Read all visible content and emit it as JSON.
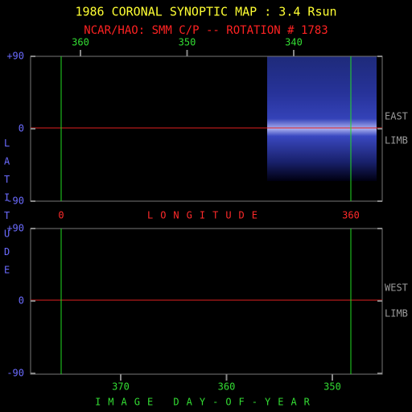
{
  "title": "1986 CORONAL SYNOPTIC MAP : 3.4 Rsun",
  "subtitle": "NCAR/HAO: SMM C/P -- ROTATION # 1783",
  "y_axis_label": "LATITUDE",
  "upper_panel": {
    "top_axis_ticks": [
      360,
      350,
      340
    ],
    "y_ticks": [
      {
        "value": 90,
        "label": "+90"
      },
      0,
      -90
    ],
    "bottom_axis": {
      "ticks": [
        0,
        360
      ],
      "label": "LONGITUDE"
    },
    "right_labels": [
      "EAST",
      "LIMB"
    ]
  },
  "lower_panel": {
    "y_ticks": [
      {
        "value": 90,
        "label": "+90"
      },
      0,
      -90
    ],
    "x_ticks": [
      370,
      360,
      350
    ],
    "x_label": "IMAGE DAY-OF-YEAR",
    "right_labels": [
      "WEST",
      "LIMB"
    ]
  }
}
